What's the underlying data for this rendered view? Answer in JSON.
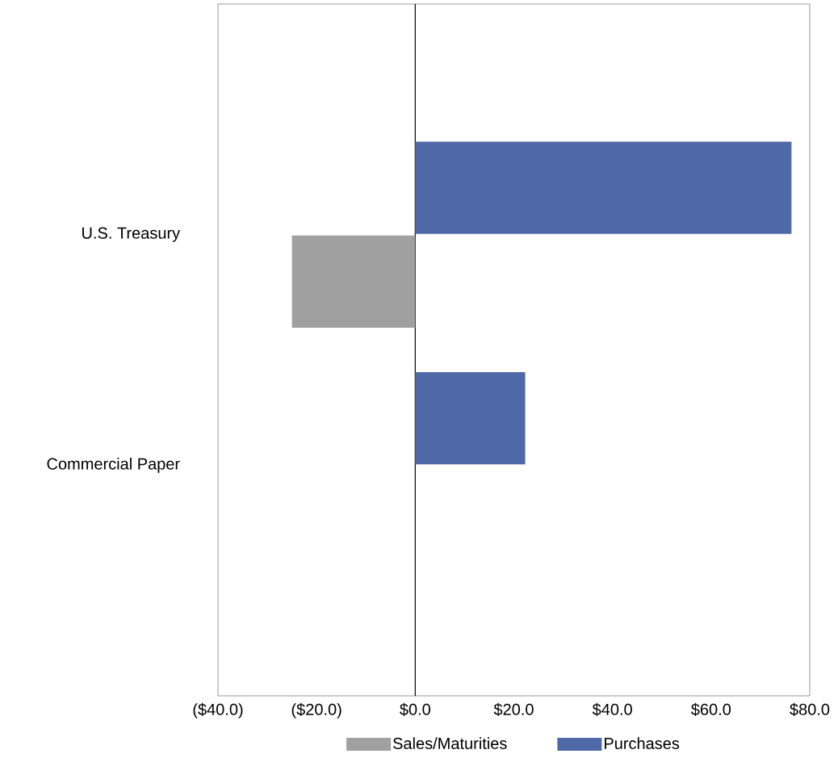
{
  "chart_data": {
    "type": "bar",
    "stacked": true,
    "orientation": "horizontal",
    "categories": [
      "U.S. Treasury",
      "Commercial Paper"
    ],
    "series": [
      {
        "name": "Sales/Maturities",
        "color": "#a0a0a0",
        "values": [
          -25.0,
          0
        ]
      },
      {
        "name": "Purchases",
        "color": "#4f69a8",
        "values": [
          76.3,
          22.3
        ]
      }
    ],
    "xlim": [
      -40,
      80
    ],
    "xticks": [
      {
        "value": -40,
        "label": "($40.0)"
      },
      {
        "value": -20,
        "label": "($20.0)"
      },
      {
        "value": 0,
        "label": "$0.0"
      },
      {
        "value": 20,
        "label": "$20.0"
      },
      {
        "value": 40,
        "label": "$40.0"
      },
      {
        "value": 60,
        "label": "$60.0"
      },
      {
        "value": 80,
        "label": "$80.0"
      }
    ],
    "ref_lines": [
      {
        "axis": "x",
        "value": 0
      }
    ],
    "grid": false,
    "legend": "bottom"
  }
}
